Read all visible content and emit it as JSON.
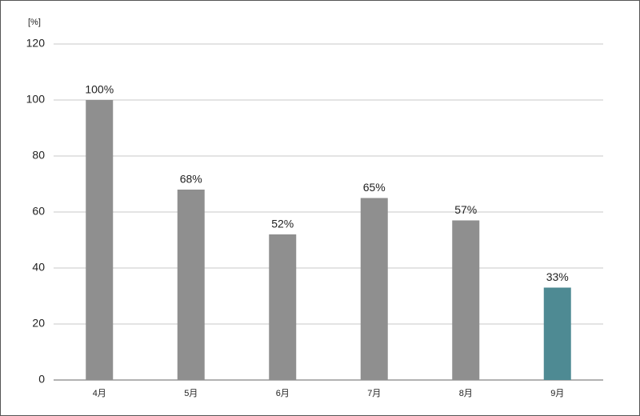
{
  "chart_data": {
    "type": "bar",
    "y_label": "[%]",
    "categories": [
      "4月",
      "5月",
      "6月",
      "7月",
      "8月",
      "9月"
    ],
    "values": [
      100,
      68,
      52,
      65,
      57,
      33
    ],
    "value_labels": [
      "100%",
      "68%",
      "52%",
      "65%",
      "57%",
      "33%"
    ],
    "colors": [
      "#8f8f8f",
      "#8f8f8f",
      "#8f8f8f",
      "#8f8f8f",
      "#8f8f8f",
      "#4e8a93"
    ],
    "ylim": [
      0,
      120
    ],
    "yticks": [
      0,
      20,
      40,
      60,
      80,
      100,
      120
    ],
    "grid": true
  }
}
